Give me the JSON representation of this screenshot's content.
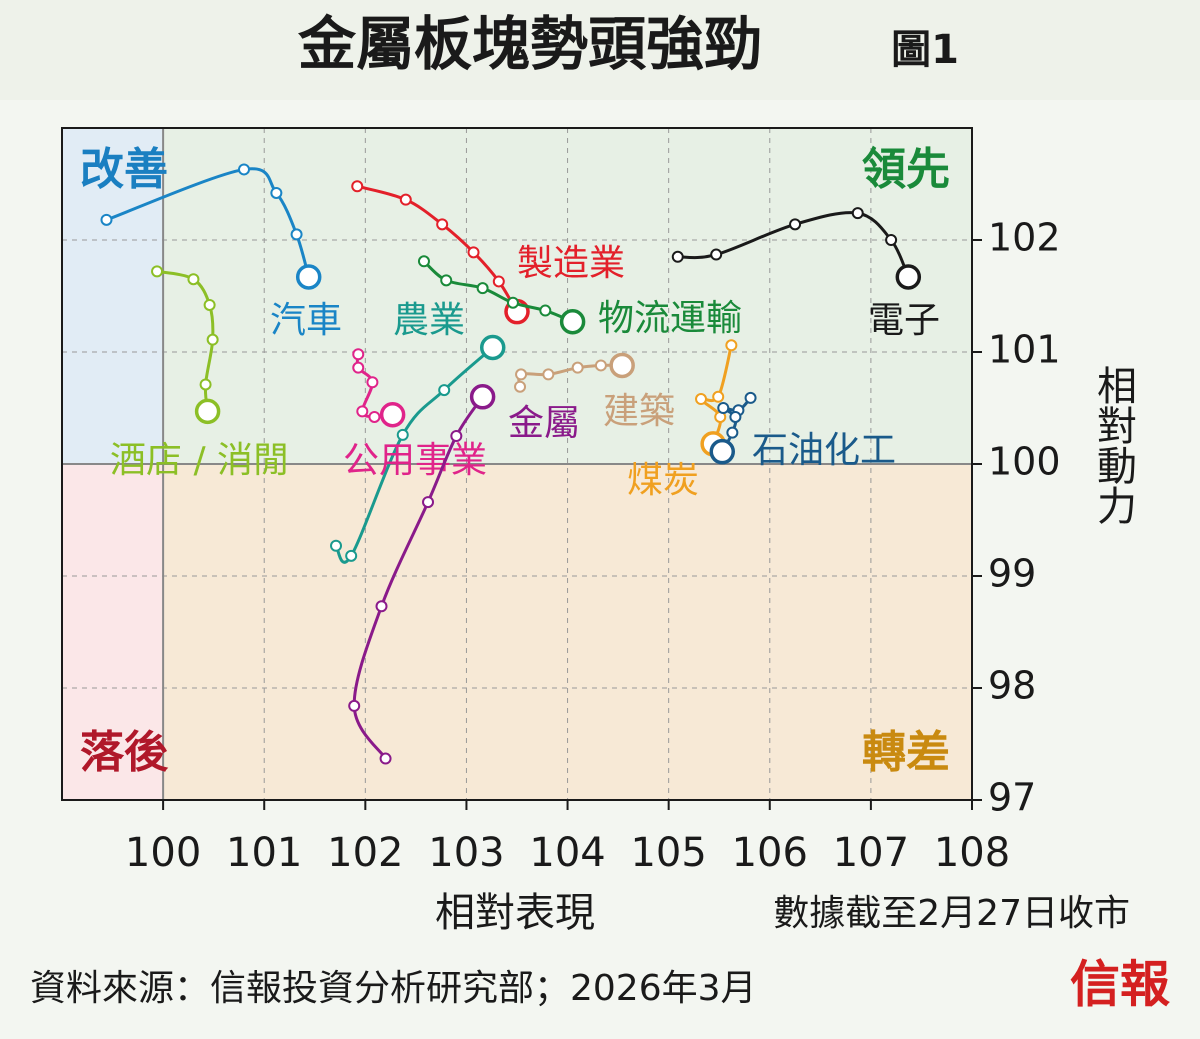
{
  "chart_data": {
    "type": "line",
    "title": "金屬板塊勢頭強勁",
    "subtitle": "圖1",
    "xlabel": "相對表現",
    "ylabel": "相對動力",
    "note": "數據截至2月27日收市",
    "source": "資料來源：信報投資分析研究部；2026年3月",
    "logo": "信報",
    "xlim": [
      99,
      108
    ],
    "ylim": [
      97,
      103
    ],
    "xticks": [
      100,
      101,
      102,
      103,
      104,
      105,
      106,
      107,
      108
    ],
    "yticks": [
      97,
      98,
      99,
      100,
      101,
      102
    ],
    "grid": true,
    "reference": {
      "x": 100,
      "y": 100
    },
    "quadrant_labels": [
      {
        "text": "改善",
        "color": "#1a7fc1",
        "fill": "#e1ecf5"
      },
      {
        "text": "領先",
        "color": "#1a8a3a",
        "fill": "#e7f0e5"
      },
      {
        "text": "落後",
        "color": "#b0182a",
        "fill": "#fbe7e8"
      },
      {
        "text": "轉差",
        "color": "#c98a10",
        "fill": "#f7e9d6"
      }
    ],
    "series": [
      {
        "name": "汽車",
        "color": "#1a85c6",
        "x": [
          99.44,
          100.8,
          101.12,
          101.32,
          101.44
        ],
        "y": [
          102.18,
          102.63,
          102.42,
          102.05,
          101.67
        ]
      },
      {
        "name": "酒店 / 消閒",
        "color": "#8cbf26",
        "x": [
          99.94,
          100.3,
          100.46,
          100.49,
          100.42,
          100.44
        ],
        "y": [
          101.72,
          101.65,
          101.42,
          101.11,
          100.71,
          100.47
        ]
      },
      {
        "name": "製造業",
        "color": "#e3202a",
        "x": [
          101.92,
          102.4,
          102.76,
          103.07,
          103.32,
          103.5
        ],
        "y": [
          102.48,
          102.36,
          102.14,
          101.89,
          101.63,
          101.36
        ]
      },
      {
        "name": "農業",
        "color": "#1a9a8e",
        "x": [
          101.71,
          101.86,
          102.37,
          102.78,
          103.26
        ],
        "y": [
          99.27,
          99.18,
          100.26,
          100.66,
          101.04
        ]
      },
      {
        "name": "物流運輸",
        "color": "#1a8a3a",
        "x": [
          102.58,
          102.8,
          103.16,
          103.46,
          103.78,
          104.05
        ],
        "y": [
          101.81,
          101.64,
          101.57,
          101.44,
          101.37,
          101.27
        ]
      },
      {
        "name": "電子",
        "color": "#1a1a1a",
        "x": [
          105.09,
          105.47,
          106.25,
          106.87,
          107.2,
          107.37
        ],
        "y": [
          101.85,
          101.87,
          102.14,
          102.24,
          102.0,
          101.67
        ]
      },
      {
        "name": "公用事業",
        "color": "#e0248a",
        "x": [
          101.93,
          101.93,
          102.07,
          101.97,
          102.09,
          102.27
        ],
        "y": [
          100.98,
          100.86,
          100.73,
          100.47,
          100.42,
          100.44
        ]
      },
      {
        "name": "金屬",
        "color": "#8a1a8a",
        "x": [
          102.2,
          101.89,
          102.16,
          102.62,
          102.9,
          103.16
        ],
        "y": [
          97.37,
          97.84,
          98.73,
          99.66,
          100.25,
          100.6
        ]
      },
      {
        "name": "建築",
        "color": "#c9a07a",
        "x": [
          103.53,
          103.54,
          103.81,
          104.1,
          104.33,
          104.54
        ],
        "y": [
          100.69,
          100.8,
          100.8,
          100.86,
          100.88,
          100.88
        ]
      },
      {
        "name": "煤炭",
        "color": "#f0a020",
        "x": [
          105.62,
          105.49,
          105.32,
          105.51,
          105.44
        ],
        "y": [
          101.06,
          100.6,
          100.58,
          100.42,
          100.18
        ]
      },
      {
        "name": "石油化工",
        "color": "#1a5a8a",
        "x": [
          105.81,
          105.69,
          105.54,
          105.66,
          105.63,
          105.53
        ],
        "y": [
          100.59,
          100.48,
          100.5,
          100.42,
          100.28,
          100.11
        ]
      }
    ]
  }
}
